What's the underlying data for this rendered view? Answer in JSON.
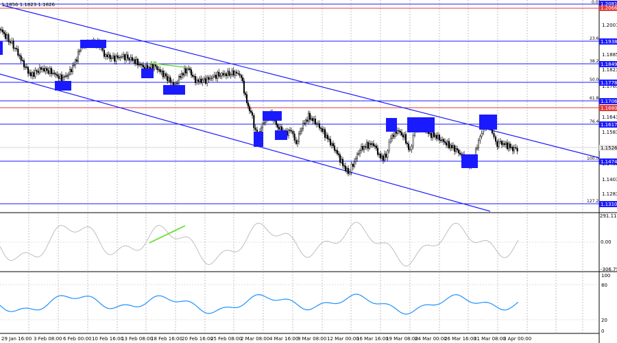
{
  "header": {
    "ohlc_text": "1.1856 1.1823 1.1826"
  },
  "price_axis": {
    "ticks": [
      "1.2001",
      "1.1885",
      "1.1823",
      "1.1763",
      "1.1643",
      "1.1583",
      "1.1463",
      "1.1403",
      "1.1283"
    ],
    "ticks_extra": [
      "1.2081",
      "1.2066"
    ]
  },
  "levels": [
    {
      "label": "1.2081",
      "fib": "0.0",
      "color": "#1a1aff"
    },
    {
      "label": "1.2066",
      "fib": "",
      "color": "#e23a3a"
    },
    {
      "label": "1.1938",
      "fib": "23.6",
      "color": "#1a1aff"
    },
    {
      "label": "1.1849",
      "fib": "38.2",
      "color": "#1a1aff"
    },
    {
      "label": "1.1778",
      "fib": "50.0",
      "color": "#1a1aff"
    },
    {
      "label": "1.1706",
      "fib": "61.8",
      "color": "#1a1aff"
    },
    {
      "label": "1.1680",
      "fib": "",
      "color": "#e23a3a"
    },
    {
      "label": "1.1617",
      "fib": "76.4",
      "color": "#1a1aff"
    },
    {
      "label": "1.1526",
      "fib": "",
      "color": "#dcdcdc"
    },
    {
      "label": "1.1474",
      "fib": "100.0",
      "color": "#1a1aff"
    },
    {
      "label": "1.1310",
      "fib": "127.2",
      "color": "#1a1aff"
    }
  ],
  "indicator1": {
    "ticks": [
      "291.1149",
      "0.00",
      "-306.75"
    ]
  },
  "indicator2": {
    "ticks": [
      "100",
      "80",
      "20",
      "0"
    ]
  },
  "time_axis": {
    "labels": [
      "29 Jan 16:00",
      "3 Feb 08:00",
      "6 Feb 00:00",
      "10 Feb 16:00",
      "13 Feb 08:00",
      "18 Feb 16:00",
      "20 Feb 16:00",
      "25 Feb 08:00",
      "2 Mar 08:00",
      "4 Mar 16:00",
      "9 Mar 08:00",
      "12 Mar 00:00",
      "16 Mar 16:00",
      "19 Mar 08:00",
      "24 Mar 00:00",
      "26 Mar 16:00",
      "31 Mar 08:00",
      "3 Apr 00:00"
    ]
  },
  "colors": {
    "accent_blue": "#1a1aff",
    "resistance_red": "#e23a3a",
    "cci_gray": "#bdbdbd",
    "rsi_blue": "#1e90ff",
    "divergence_green": "#66dd33"
  }
}
